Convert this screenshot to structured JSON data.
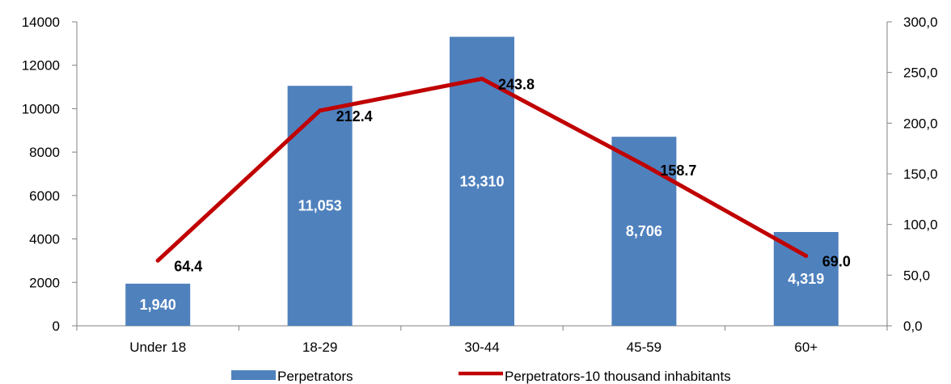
{
  "chart_data": {
    "type": "bar",
    "categories": [
      "Under 18",
      "18-29",
      "30-44",
      "45-59",
      "60+"
    ],
    "series": [
      {
        "name": "Perpetrators",
        "type": "bar",
        "axis": "left",
        "values": [
          1940,
          11053,
          13310,
          8706,
          4319
        ],
        "labels": [
          "1,940",
          "11,053",
          "13,310",
          "8,706",
          "4,319"
        ]
      },
      {
        "name": "Perpetrators-10 thousand inhabitants",
        "type": "line",
        "axis": "right",
        "values": [
          64.4,
          212.4,
          243.8,
          158.7,
          69.0
        ],
        "labels": [
          "64.4",
          "212.4",
          "243.8",
          "158.7",
          "69.0"
        ]
      }
    ],
    "y_left": {
      "min": 0,
      "max": 14000,
      "ticks": [
        0,
        2000,
        4000,
        6000,
        8000,
        10000,
        12000,
        14000
      ],
      "tick_labels": [
        "0",
        "2000",
        "4000",
        "6000",
        "8000",
        "10000",
        "12000",
        "14000"
      ]
    },
    "y_right": {
      "min": 0,
      "max": 300,
      "ticks": [
        0,
        50,
        100,
        150,
        200,
        250,
        300
      ],
      "tick_labels": [
        "0,0",
        "50,0",
        "100,0",
        "150,0",
        "200,0",
        "250,0",
        "300,0"
      ]
    },
    "colors": {
      "bar": "#4f81bd",
      "line": "#c00000",
      "axis": "#808080"
    },
    "grid": false,
    "legend_position": "bottom"
  }
}
